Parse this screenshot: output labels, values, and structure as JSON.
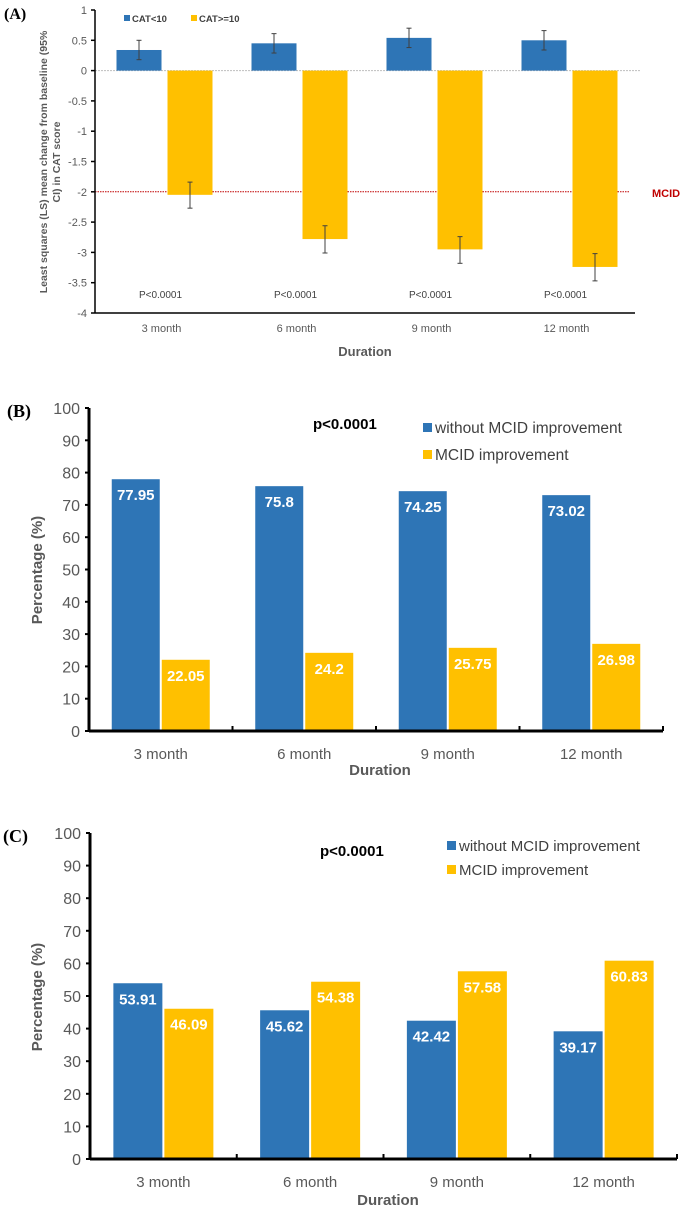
{
  "colors": {
    "blue": "#2e75b6",
    "yellow": "#ffc000",
    "mcid_line": "#c00000",
    "error_bar": "#404040"
  },
  "chart_data": [
    {
      "panel": "(A)",
      "type": "bar",
      "title": "",
      "xlabel": "Duration",
      "ylabel": "Least squares (LS) mean change from baseline (95% CI) in CAT score",
      "ylim": [
        -4,
        1
      ],
      "yticks": [
        1,
        0.5,
        0,
        -0.5,
        -1,
        -1.5,
        -2,
        -2.5,
        -3,
        -3.5,
        -4
      ],
      "ytick_labels": [
        "1",
        "0.5",
        "0",
        "-0.5",
        "-1",
        "-1.5",
        "-2",
        "-2.5",
        "-3",
        "-3.5",
        "-4"
      ],
      "categories": [
        "3 month",
        "6 month",
        "9 month",
        "12 month"
      ],
      "legend_position": "top-left",
      "series": [
        {
          "name": "CAT<10",
          "color": "#2e75b6",
          "values": [
            0.34,
            0.45,
            0.54,
            0.5
          ],
          "ci_low": [
            0.18,
            0.29,
            0.38,
            0.34
          ],
          "ci_high": [
            0.5,
            0.61,
            0.7,
            0.66
          ]
        },
        {
          "name": "CAT>=10",
          "color": "#ffc000",
          "values": [
            -2.05,
            -2.78,
            -2.95,
            -3.24
          ],
          "ci_low": [
            -2.27,
            -3.01,
            -3.18,
            -3.47
          ],
          "ci_high": [
            -1.84,
            -2.56,
            -2.74,
            -3.02
          ]
        }
      ],
      "reference_line": {
        "label": "MCID",
        "value": -2
      },
      "annotations": [
        "P<0.0001",
        "P<0.0001",
        "P<0.0001",
        "P<0.0001"
      ],
      "grid": false
    },
    {
      "panel": "(B)",
      "type": "bar",
      "title": "",
      "xlabel": "Duration",
      "ylabel": "Percentage (%)",
      "ylim": [
        0,
        100
      ],
      "yticks": [
        0,
        10,
        20,
        30,
        40,
        50,
        60,
        70,
        80,
        90,
        100
      ],
      "ytick_labels": [
        "0",
        "10",
        "20",
        "30",
        "40",
        "50",
        "60",
        "70",
        "80",
        "90",
        "100"
      ],
      "categories": [
        "3 month",
        "6 month",
        "9 month",
        "12 month"
      ],
      "legend_position": "top-right",
      "series": [
        {
          "name": "without MCID improvement",
          "color": "#2e75b6",
          "values": [
            77.95,
            75.8,
            74.25,
            73.02
          ],
          "labels": [
            "77.95",
            "75.8",
            "74.25",
            "73.02"
          ]
        },
        {
          "name": "MCID improvement",
          "color": "#ffc000",
          "values": [
            22.05,
            24.2,
            25.75,
            26.98
          ],
          "labels": [
            "22.05",
            "24.2",
            "25.75",
            "26.98"
          ]
        }
      ],
      "annotation": "p<0.0001",
      "grid": false
    },
    {
      "panel": "(C)",
      "type": "bar",
      "title": "",
      "xlabel": "Duration",
      "ylabel": "Percentage (%)",
      "ylim": [
        0,
        100
      ],
      "yticks": [
        0,
        10,
        20,
        30,
        40,
        50,
        60,
        70,
        80,
        90,
        100
      ],
      "ytick_labels": [
        "0",
        "10",
        "20",
        "30",
        "40",
        "50",
        "60",
        "70",
        "80",
        "90",
        "100"
      ],
      "categories": [
        "3 month",
        "6 month",
        "9 month",
        "12 month"
      ],
      "legend_position": "top-right",
      "series": [
        {
          "name": "without MCID improvement",
          "color": "#2e75b6",
          "values": [
            53.91,
            45.62,
            42.42,
            39.17
          ],
          "labels": [
            "53.91",
            "45.62",
            "42.42",
            "39.17"
          ]
        },
        {
          "name": "MCID improvement",
          "color": "#ffc000",
          "values": [
            46.09,
            54.38,
            57.58,
            60.83
          ],
          "labels": [
            "46.09",
            "54.38",
            "57.58",
            "60.83"
          ]
        }
      ],
      "annotation": "p<0.0001",
      "grid": false
    }
  ]
}
